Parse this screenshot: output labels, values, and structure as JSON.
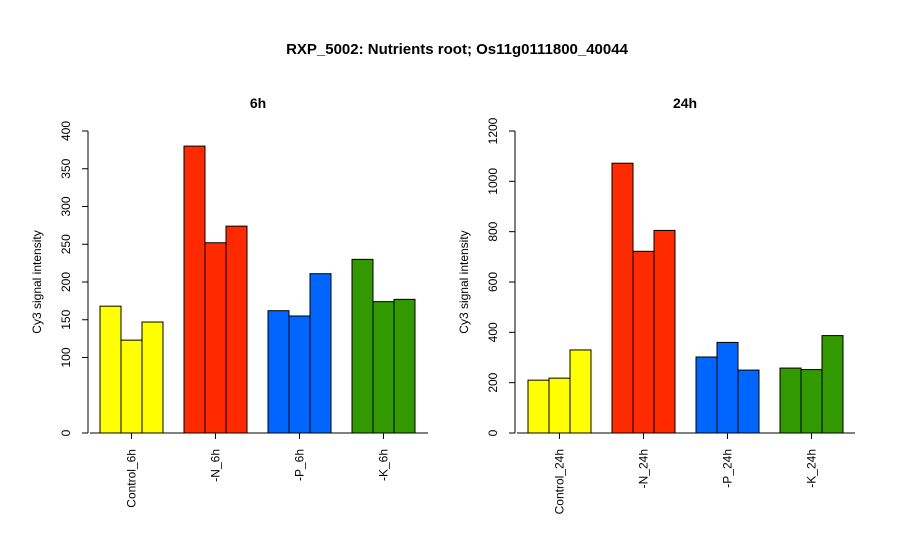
{
  "title": "RXP_5002: Nutrients root; Os11g0111800_40044",
  "colors": {
    "yellow": "#ffff00",
    "red": "#ff2a00",
    "blue": "#0066ff",
    "green": "#339900"
  },
  "chart_data": [
    {
      "type": "bar",
      "title": "6h",
      "ylabel": "Cy3 signal intensity",
      "ylim": [
        0,
        400
      ],
      "yticks": [
        0,
        100,
        150,
        200,
        250,
        300,
        350,
        400
      ],
      "ytick_labels": [
        "0",
        "100",
        "150",
        "200",
        "250",
        "300",
        "350",
        "400"
      ],
      "groups": [
        {
          "label": "Control_6h",
          "color": "#ffff00",
          "values": [
            168,
            123,
            147
          ]
        },
        {
          "label": "-N_6h",
          "color": "#ff2a00",
          "values": [
            380,
            252,
            274
          ]
        },
        {
          "label": "-P_6h",
          "color": "#0066ff",
          "values": [
            162,
            155,
            211
          ]
        },
        {
          "label": "-K_6h",
          "color": "#339900",
          "values": [
            230,
            174,
            177
          ]
        }
      ]
    },
    {
      "type": "bar",
      "title": "24h",
      "ylabel": "Cy3 signal intensity",
      "ylim": [
        0,
        1200
      ],
      "yticks": [
        0,
        200,
        400,
        600,
        800,
        1000,
        1200
      ],
      "ytick_labels": [
        "0",
        "200",
        "400",
        "600",
        "800",
        "1000",
        "1200"
      ],
      "groups": [
        {
          "label": "Control_24h",
          "color": "#ffff00",
          "values": [
            210,
            218,
            330
          ]
        },
        {
          "label": "-N_24h",
          "color": "#ff2a00",
          "values": [
            1072,
            722,
            805
          ]
        },
        {
          "label": "-P_24h",
          "color": "#0066ff",
          "values": [
            302,
            360,
            250
          ]
        },
        {
          "label": "-K_24h",
          "color": "#339900",
          "values": [
            258,
            252,
            387
          ]
        }
      ]
    }
  ]
}
